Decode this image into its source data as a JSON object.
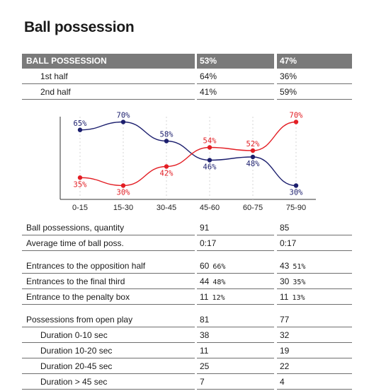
{
  "page_title": "Ball possession",
  "header": {
    "label": "BALL POSSESSION",
    "team1": "53%",
    "team2": "47%"
  },
  "halves": [
    {
      "label": "1st half",
      "team1": "64%",
      "team2": "36%"
    },
    {
      "label": "2nd half",
      "team1": "41%",
      "team2": "59%"
    }
  ],
  "colors": {
    "team1": "#1c1f6e",
    "team2": "#e31e24",
    "header_bg": "#7a7a7a"
  },
  "chart_data": {
    "type": "line",
    "categories": [
      "0-15",
      "15-30",
      "30-45",
      "45-60",
      "60-75",
      "75-90"
    ],
    "series": [
      {
        "values": [
          65,
          70,
          58,
          46,
          48,
          30
        ],
        "labels": [
          "65%",
          "70%",
          "58%",
          "46%",
          "48%",
          "30%"
        ],
        "color": "#1c1f6e"
      },
      {
        "values": [
          35,
          30,
          42,
          54,
          52,
          70
        ],
        "labels": [
          "35%",
          "30%",
          "42%",
          "54%",
          "52%",
          "70%"
        ],
        "color": "#e31e24"
      }
    ],
    "ylim": [
      20,
      80
    ]
  },
  "stats": [
    {
      "label": "Ball possessions, quantity",
      "team1": "91",
      "team2": "85"
    },
    {
      "label": "Average time of ball poss.",
      "team1": "0:17",
      "team2": "0:17"
    }
  ],
  "entrances": [
    {
      "label": "Entrances to the opposition half",
      "team1": "60",
      "team1_pct": "66%",
      "team2": "43",
      "team2_pct": "51%"
    },
    {
      "label": "Entrances to the final third",
      "team1": "44",
      "team1_pct": "48%",
      "team2": "30",
      "team2_pct": "35%"
    },
    {
      "label": "Entrance to the penalty box",
      "team1": "11",
      "team1_pct": "12%",
      "team2": "11",
      "team2_pct": "13%"
    }
  ],
  "open_play": {
    "label": "Possessions from open play",
    "team1": "81",
    "team2": "77",
    "durations": [
      {
        "label": "Duration 0-10 sec",
        "team1": "38",
        "team2": "32"
      },
      {
        "label": "Duration 10-20 sec",
        "team1": "11",
        "team2": "19"
      },
      {
        "label": "Duration 20-45 sec",
        "team1": "25",
        "team2": "22"
      },
      {
        "label": "Duration > 45 sec",
        "team1": "7",
        "team2": "4"
      }
    ]
  }
}
